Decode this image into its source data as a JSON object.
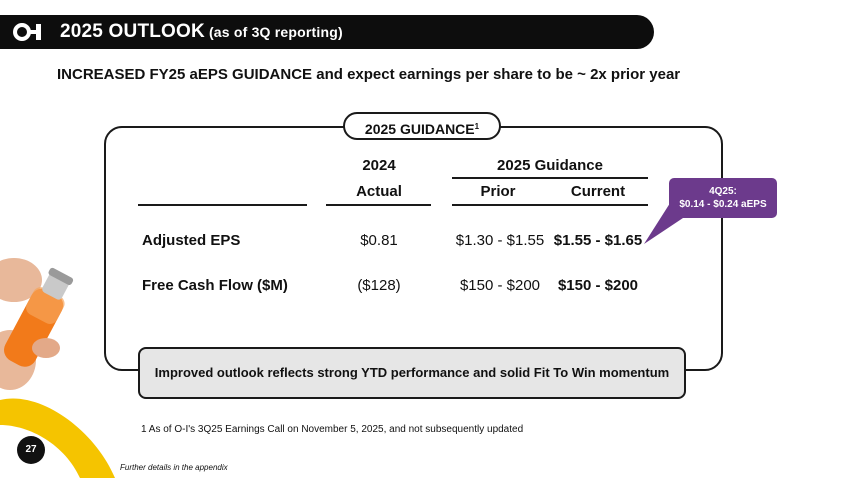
{
  "header": {
    "title": "2025 OUTLOOK",
    "subtitle": "(as of 3Q reporting)"
  },
  "headline": {
    "bold": "INCREASED FY25 aEPS GUIDANCE",
    "rest": " and expect earnings per share to be ~ 2x prior year"
  },
  "guidance": {
    "tag": "2025 GUIDANCE",
    "tag_sup": "1",
    "col_2024_top": "2024",
    "col_2024_bottom": "Actual",
    "col_2025_top": "2025 Guidance",
    "col_prior": "Prior",
    "col_current": "Current",
    "rows": [
      {
        "label": "Adjusted EPS",
        "actual": "$0.81",
        "prior": "$1.30 - $1.55",
        "current": "$1.55 - $1.65"
      },
      {
        "label": "Free Cash Flow ($M)",
        "actual": "($128)",
        "prior": "$150 - $200",
        "current": "$150 - $200"
      }
    ]
  },
  "callout": {
    "line1": "4Q25:",
    "line2": "$0.14 - $0.24 aEPS"
  },
  "summary": "Improved outlook reflects strong YTD performance and solid Fit To Win momentum",
  "footnote": "1 As of O-I's 3Q25 Earnings Call on November 5, 2025, and not subsequently updated",
  "appendix_note": "Further details in the appendix",
  "page_number": "27",
  "colors": {
    "callout": "#6c3a8c",
    "title_bar": "#0d0d0d",
    "summary_bg": "#e6e6e6",
    "swoosh": "#f5c400"
  }
}
